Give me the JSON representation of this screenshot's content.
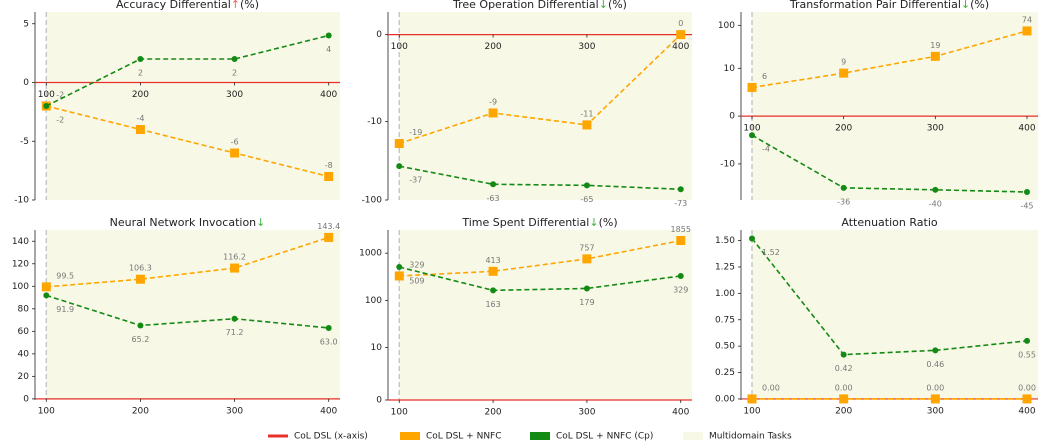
{
  "legend": [
    {
      "name": "CoL DSL (x-axis)",
      "color": "#e8302a"
    },
    {
      "name": "CoL DSL + NNFC",
      "color": "#ffa500"
    },
    {
      "name": "CoL DSL + NNFC (Cp)",
      "color": "#138a13"
    },
    {
      "name": "Multidomain Tasks",
      "color": "#f8f8e6"
    }
  ],
  "legend_loc": "lower center",
  "chart_data": [
    {
      "type": "line",
      "title": "Accuracy Differential",
      "title_arrow": "↑",
      "title_arrow_color": "#ff5a5a",
      "title_suffix": "(%)",
      "x": [
        100,
        200,
        300,
        400
      ],
      "xlim": [
        88,
        412
      ],
      "xticks": [
        100,
        200,
        300,
        400
      ],
      "span_from": 100,
      "ylim": [
        -10,
        6
      ],
      "yticks": [
        -10,
        -5,
        0,
        5
      ],
      "baseline": 0,
      "series": [
        {
          "color": "#ffa500",
          "marker": "square",
          "values": [
            -2,
            -4,
            -6,
            -8
          ]
        },
        {
          "color": "#138a13",
          "marker": "circle",
          "values": [
            -2,
            2,
            2,
            4
          ]
        }
      ]
    },
    {
      "type": "line",
      "title": "Tree Operation Differential",
      "title_arrow": "↓",
      "title_arrow_color": "#3cb43c",
      "title_suffix": "(%)",
      "x": [
        100,
        200,
        300,
        400
      ],
      "xlim": [
        88,
        412
      ],
      "xticks": [
        100,
        200,
        300,
        400
      ],
      "span_from": 100,
      "yscale": "symlog",
      "linthresh": 10,
      "ylim": [
        -100,
        2.6
      ],
      "yticks": [
        -100,
        -10,
        0
      ],
      "baseline": 0,
      "series": [
        {
          "color": "#ffa500",
          "marker": "square",
          "values": [
            -19,
            -9,
            -11,
            0
          ]
        },
        {
          "color": "#138a13",
          "marker": "circle",
          "values": [
            -37,
            -63,
            -65,
            -73
          ]
        }
      ]
    },
    {
      "type": "line",
      "title": "Transformation Pair Differential",
      "title_arrow": "↓",
      "title_arrow_color": "#3cb43c",
      "title_suffix": "(%)",
      "x": [
        100,
        200,
        300,
        400
      ],
      "xlim": [
        88,
        412
      ],
      "xticks": [
        100,
        200,
        300,
        400
      ],
      "span_from": 100,
      "yscale": "symlog",
      "linthresh": 10,
      "ylim": [
        -69,
        204
      ],
      "yticks": [
        -10,
        0,
        10,
        100
      ],
      "baseline": 0,
      "series": [
        {
          "color": "#ffa500",
          "marker": "square",
          "values": [
            6,
            9,
            19,
            74
          ]
        },
        {
          "color": "#138a13",
          "marker": "circle",
          "values": [
            -4,
            -36,
            -40,
            -45
          ]
        }
      ]
    },
    {
      "type": "line",
      "title": "Neural Network Invocation",
      "title_arrow": "↓",
      "title_arrow_color": "#3cb43c",
      "x": [
        100,
        200,
        300,
        400
      ],
      "xlim": [
        88,
        412
      ],
      "xticks": [
        100,
        200,
        300,
        400
      ],
      "span_from": 100,
      "ylim": [
        -1,
        150
      ],
      "yticks": [
        0,
        20,
        40,
        60,
        80,
        100,
        120,
        140
      ],
      "baseline": 0,
      "series": [
        {
          "color": "#ffa500",
          "marker": "square",
          "values": [
            99.5,
            106.3,
            116.2,
            143.4
          ]
        },
        {
          "color": "#138a13",
          "marker": "circle",
          "values": [
            91.9,
            65.2,
            71.2,
            63
          ],
          "value_labels": [
            "91.9",
            "65.2",
            "71.2",
            "63.0"
          ]
        }
      ]
    },
    {
      "type": "line",
      "title": "Time Spent Differential",
      "title_arrow": "↓",
      "title_arrow_color": "#3cb43c",
      "title_suffix": "(%)",
      "x": [
        100,
        200,
        300,
        400
      ],
      "xlim": [
        88,
        412
      ],
      "xticks": [
        100,
        200,
        300,
        400
      ],
      "span_from": 100,
      "yscale": "symlog",
      "linthresh": 10,
      "ylim": [
        0,
        3100
      ],
      "yticks": [
        0,
        10,
        100,
        1000
      ],
      "baseline": 0,
      "series": [
        {
          "color": "#ffa500",
          "marker": "square",
          "values": [
            329,
            413,
            757,
            1855
          ]
        },
        {
          "color": "#138a13",
          "marker": "circle",
          "values": [
            509,
            163,
            179,
            329
          ]
        }
      ]
    },
    {
      "type": "line",
      "title": "Attenuation Ratio",
      "x": [
        100,
        200,
        300,
        400
      ],
      "xlim": [
        88,
        412
      ],
      "xticks": [
        100,
        200,
        300,
        400
      ],
      "span_from": 100,
      "ylim": [
        -0.01,
        1.6
      ],
      "yticks": [
        {
          "value": 0,
          "label": "0.00"
        },
        {
          "value": 0.25,
          "label": "0.25"
        },
        {
          "value": 0.5,
          "label": "0.50"
        },
        {
          "value": 0.75,
          "label": "0.75"
        },
        {
          "value": 1,
          "label": "1.00"
        },
        {
          "value": 1.25,
          "label": "1.25"
        },
        {
          "value": 1.5,
          "label": "1.50"
        }
      ],
      "baseline": 0,
      "series": [
        {
          "color": "#ffa500",
          "marker": "square",
          "values": [
            0,
            0,
            0,
            0
          ],
          "value_labels": [
            "0.00",
            "0.00",
            "0.00",
            "0.00"
          ]
        },
        {
          "color": "#138a13",
          "marker": "circle",
          "values": [
            1.52,
            0.42,
            0.46,
            0.55
          ]
        }
      ]
    }
  ]
}
